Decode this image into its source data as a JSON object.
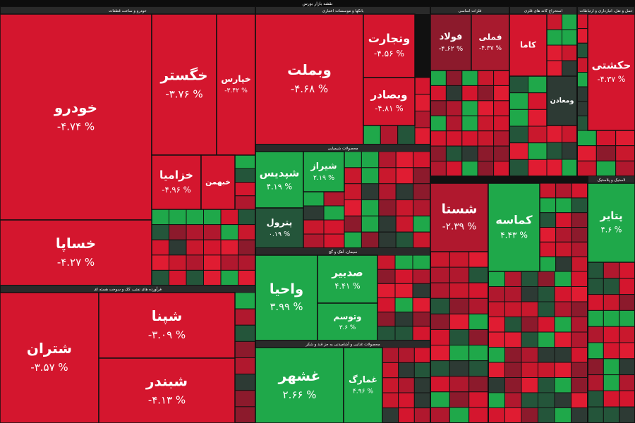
{
  "header": {
    "title": "نقشه بازار بورس"
  },
  "sectors": [
    {
      "title": "خودرو و ساخت قطعات",
      "tiles": [
        {
          "name": "خودرو",
          "change": "-۴.۷۴ %",
          "color": "#d4162e"
        },
        {
          "name": "خساپا",
          "change": "-۴.۲۷ %",
          "color": "#d4162e"
        },
        {
          "name": "خگستر",
          "change": "-۳.۷۶ %",
          "color": "#d4162e"
        },
        {
          "name": "خپارس",
          "change": "-۳.۴۲ %",
          "color": "#d4162e"
        },
        {
          "name": "خزامیا",
          "change": "-۴.۹۶ %",
          "color": "#d4162e"
        },
        {
          "name": "خبهمن",
          "color": "#d4162e"
        }
      ]
    },
    {
      "title": "فرآورده های نفتی، کک و سوخت هسته ای",
      "tiles": [
        {
          "name": "شتران",
          "change": "-۳.۵۷ %",
          "color": "#d4162e"
        },
        {
          "name": "شپنا",
          "change": "-۳.۰۹ %",
          "color": "#d4162e"
        },
        {
          "name": "شبندر",
          "change": "-۴.۱۳ %",
          "color": "#d4162e"
        }
      ]
    },
    {
      "title": "بانکها و موسسات اعتباری",
      "tiles": [
        {
          "name": "وبملت",
          "change": "-۴.۶۸ %",
          "color": "#d4162e"
        },
        {
          "name": "وتجارت",
          "change": "-۴.۵۶ %",
          "color": "#d4162e"
        },
        {
          "name": "وبصادر",
          "change": "-۴.۸۱ %",
          "color": "#d4162e"
        }
      ]
    },
    {
      "title": "محصولات شیمیایی",
      "tiles": [
        {
          "name": "شپدیس",
          "change": "۴.۱۹ %",
          "color": "#1fa84a"
        },
        {
          "name": "شیراز",
          "change": "۲.۱۹ %",
          "color": "#1fa84a"
        },
        {
          "name": "پترول",
          "change": "۰.۱۹ %",
          "color": "#24553a"
        }
      ]
    },
    {
      "title": "سیمان، آهک و گچ",
      "tiles": [
        {
          "name": "واحیا",
          "change": "۳.۹۹ %",
          "color": "#1fa84a"
        },
        {
          "name": "صدبیر",
          "change": "۴.۴۱ %",
          "color": "#1fa84a"
        },
        {
          "name": "وتوسم",
          "change": "۳.۶ %",
          "color": "#1fa84a"
        }
      ]
    },
    {
      "title": "محصولات غذایی و آشامیدنی به جز قند و شکر",
      "tiles": [
        {
          "name": "غشهر",
          "change": "۲.۶۶ %",
          "color": "#1fa84a"
        },
        {
          "name": "غمارگ",
          "change": "۴.۹۶ %",
          "color": "#1fa84a"
        }
      ]
    },
    {
      "title": "فلزات اساسی",
      "tiles": [
        {
          "name": "فولاد",
          "change": "-۴.۶۲ %",
          "color": "#8c1a2c"
        },
        {
          "name": "فملی",
          "change": "-۴.۳۷ %",
          "color": "#a81a2e"
        }
      ]
    },
    {
      "title": "استخراج کانه های فلزی",
      "tiles": [
        {
          "name": "کاما",
          "color": "#d4162e"
        },
        {
          "name": "ومعادن",
          "color": "#2d3a34"
        }
      ]
    },
    {
      "title": "حمل و نقل، انبارداری و ارتباطات",
      "tiles": [
        {
          "name": "حکشتی",
          "change": "-۴.۳۷ %",
          "color": "#d4162e"
        }
      ]
    },
    {
      "tiles": [
        {
          "name": "شستا",
          "change": "-۲.۳۹ %",
          "color": "#b0182e"
        }
      ]
    },
    {
      "tiles": [
        {
          "name": "کماسه",
          "change": "۴.۴۳ %",
          "color": "#1fa84a"
        }
      ]
    },
    {
      "title": "لاستیک و پلاستیک",
      "tiles": [
        {
          "name": "پتایر",
          "change": "۴.۶ %",
          "color": "#1fa84a"
        }
      ]
    }
  ]
}
